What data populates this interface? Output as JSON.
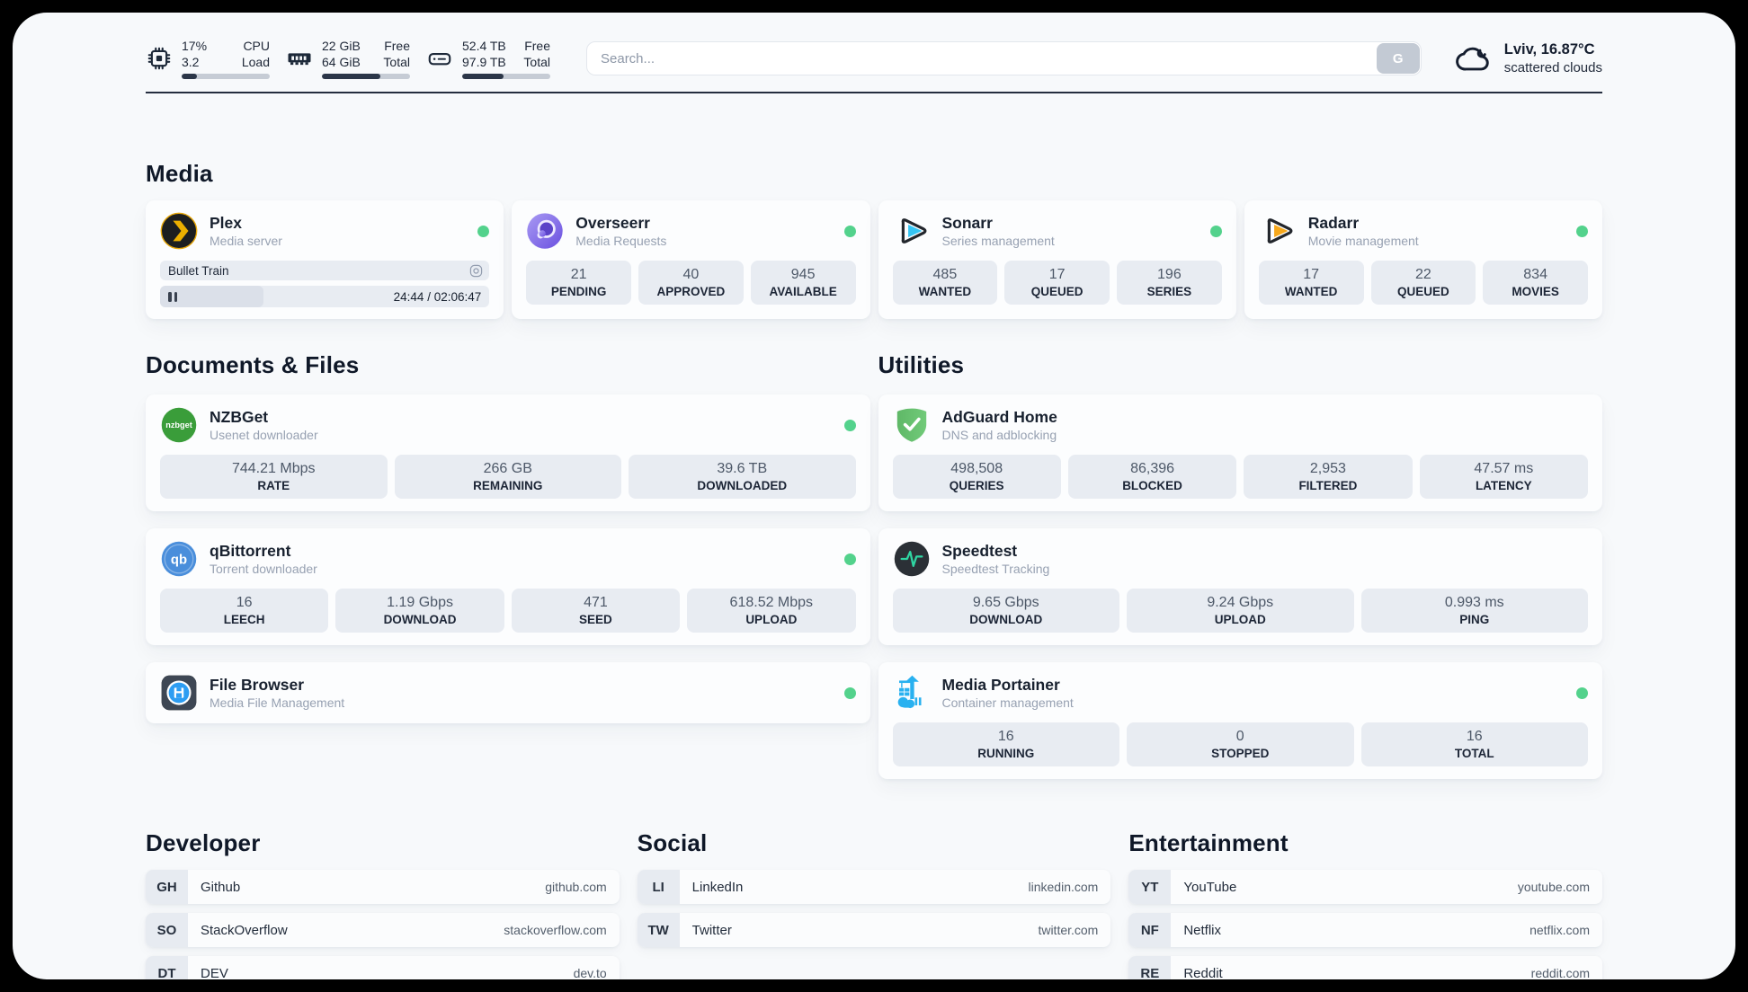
{
  "colors": {
    "status_online": "#53d28c",
    "progress_fill": "#2b3648",
    "page_background": "#f7f9fb",
    "tile_background": "#e8ecf2"
  },
  "header": {
    "system_stats": [
      {
        "name": "cpu",
        "icon": "cpu-icon",
        "col1_top": "17%",
        "col1_bottom": "3.2",
        "col2_top": "CPU",
        "col2_bottom": "Load",
        "progress_percent": 17
      },
      {
        "name": "memory",
        "icon": "memory-icon",
        "col1_top": "22 GiB",
        "col1_bottom": "64 GiB",
        "col2_top": "Free",
        "col2_bottom": "Total",
        "progress_percent": 66
      },
      {
        "name": "disk",
        "icon": "disk-icon",
        "col1_top": "52.4 TB",
        "col1_bottom": "97.9 TB",
        "col2_top": "Free",
        "col2_bottom": "Total",
        "progress_percent": 47
      }
    ],
    "search": {
      "placeholder": "Search...",
      "engine_button": "G"
    },
    "weather": {
      "icon": "cloud-icon",
      "location_temperature": "Lviv, 16.87°C",
      "condition": "scattered clouds"
    }
  },
  "sections": {
    "media": {
      "title": "Media",
      "plex": {
        "icon": "plex-icon",
        "title": "Plex",
        "subtitle": "Media server",
        "online": true,
        "now_playing": "Bullet Train",
        "playback_time": "24:44 / 02:06:47"
      },
      "overseerr": {
        "icon": "overseerr-icon",
        "title": "Overseerr",
        "subtitle": "Media Requests",
        "online": true,
        "stats": [
          {
            "value": "21",
            "label": "PENDING"
          },
          {
            "value": "40",
            "label": "APPROVED"
          },
          {
            "value": "945",
            "label": "AVAILABLE"
          }
        ]
      },
      "sonarr": {
        "icon": "sonarr-icon",
        "title": "Sonarr",
        "subtitle": "Series management",
        "online": true,
        "stats": [
          {
            "value": "485",
            "label": "WANTED"
          },
          {
            "value": "17",
            "label": "QUEUED"
          },
          {
            "value": "196",
            "label": "SERIES"
          }
        ]
      },
      "radarr": {
        "icon": "radarr-icon",
        "title": "Radarr",
        "subtitle": "Movie management",
        "online": true,
        "stats": [
          {
            "value": "17",
            "label": "WANTED"
          },
          {
            "value": "22",
            "label": "QUEUED"
          },
          {
            "value": "834",
            "label": "MOVIES"
          }
        ]
      }
    },
    "documents": {
      "title": "Documents & Files",
      "nzbget": {
        "icon": "nzbget-icon",
        "title": "NZBGet",
        "subtitle": "Usenet downloader",
        "online": true,
        "stats": [
          {
            "value": "744.21 Mbps",
            "label": "RATE"
          },
          {
            "value": "266 GB",
            "label": "REMAINING"
          },
          {
            "value": "39.6 TB",
            "label": "DOWNLOADED"
          }
        ]
      },
      "qbittorrent": {
        "icon": "qbittorrent-icon",
        "title": "qBittorrent",
        "subtitle": "Torrent downloader",
        "online": true,
        "stats": [
          {
            "value": "16",
            "label": "LEECH"
          },
          {
            "value": "1.19 Gbps",
            "label": "DOWNLOAD"
          },
          {
            "value": "471",
            "label": "SEED"
          },
          {
            "value": "618.52 Mbps",
            "label": "UPLOAD"
          }
        ]
      },
      "filebrowser": {
        "icon": "filebrowser-icon",
        "title": "File Browser",
        "subtitle": "Media File Management",
        "online": true
      }
    },
    "utilities": {
      "title": "Utilities",
      "adguard": {
        "icon": "adguard-icon",
        "title": "AdGuard Home",
        "subtitle": "DNS and adblocking",
        "online": false,
        "stats": [
          {
            "value": "498,508",
            "label": "QUERIES"
          },
          {
            "value": "86,396",
            "label": "BLOCKED"
          },
          {
            "value": "2,953",
            "label": "FILTERED"
          },
          {
            "value": "47.57 ms",
            "label": "LATENCY"
          }
        ]
      },
      "speedtest": {
        "icon": "speedtest-icon",
        "title": "Speedtest",
        "subtitle": "Speedtest Tracking",
        "online": false,
        "stats": [
          {
            "value": "9.65 Gbps",
            "label": "DOWNLOAD"
          },
          {
            "value": "9.24 Gbps",
            "label": "UPLOAD"
          },
          {
            "value": "0.993 ms",
            "label": "PING"
          }
        ]
      },
      "portainer": {
        "icon": "portainer-icon",
        "title": "Media Portainer",
        "subtitle": "Container management",
        "online": true,
        "stats": [
          {
            "value": "16",
            "label": "RUNNING"
          },
          {
            "value": "0",
            "label": "STOPPED"
          },
          {
            "value": "16",
            "label": "TOTAL"
          }
        ]
      }
    },
    "bookmarks": {
      "developer": {
        "title": "Developer",
        "links": [
          {
            "abbr": "GH",
            "name": "Github",
            "url": "github.com"
          },
          {
            "abbr": "SO",
            "name": "StackOverflow",
            "url": "stackoverflow.com"
          },
          {
            "abbr": "DT",
            "name": "DEV",
            "url": "dev.to"
          }
        ]
      },
      "social": {
        "title": "Social",
        "links": [
          {
            "abbr": "LI",
            "name": "LinkedIn",
            "url": "linkedin.com"
          },
          {
            "abbr": "TW",
            "name": "Twitter",
            "url": "twitter.com"
          }
        ]
      },
      "entertainment": {
        "title": "Entertainment",
        "links": [
          {
            "abbr": "YT",
            "name": "YouTube",
            "url": "youtube.com"
          },
          {
            "abbr": "NF",
            "name": "Netflix",
            "url": "netflix.com"
          },
          {
            "abbr": "RE",
            "name": "Reddit",
            "url": "reddit.com"
          }
        ]
      }
    }
  }
}
